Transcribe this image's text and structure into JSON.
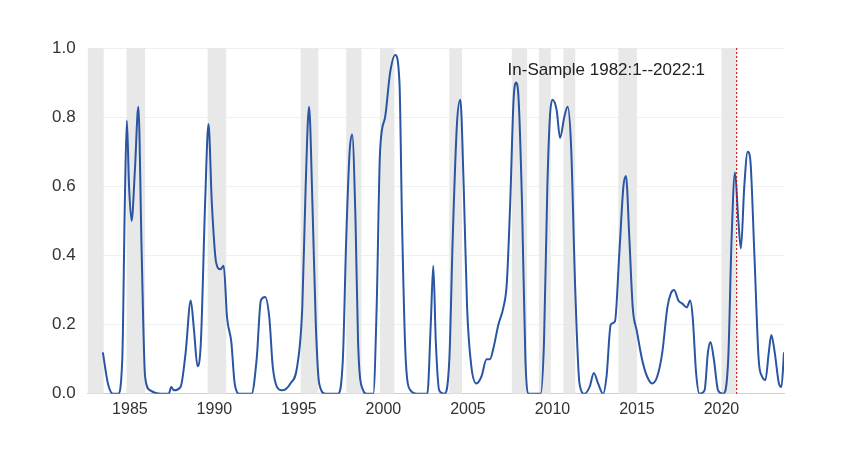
{
  "chart_data": {
    "type": "line",
    "color": "#2a55a3",
    "grid": true,
    "annotation": "In-Sample 1982:1--2022:1",
    "vline": 2020.9,
    "xlim": [
      1982.5,
      2023.7
    ],
    "xticks": [
      1985,
      1990,
      1995,
      2000,
      2005,
      2010,
      2015,
      2020
    ],
    "ylim": [
      0,
      1
    ],
    "yticks": [
      {
        "value": 0,
        "label": "0.0"
      },
      0.2,
      0.4,
      0.6,
      0.8,
      {
        "value": 1,
        "label": "1.0"
      }
    ],
    "shaded_periods": [
      [
        1982.5,
        1983.45
      ],
      [
        1984.8,
        1985.9
      ],
      [
        1989.6,
        1990.7
      ],
      [
        1995.1,
        1996.15
      ],
      [
        1997.8,
        1998.7
      ],
      [
        1999.8,
        2000.65
      ],
      [
        2003.9,
        2004.65
      ],
      [
        2007.6,
        2008.5
      ],
      [
        2009.2,
        2009.9
      ],
      [
        2010.65,
        2011.35
      ],
      [
        2013.9,
        2015.0
      ],
      [
        2020.0,
        2020.9
      ]
    ],
    "x": [
      1983.4,
      1983.7,
      1984.0,
      1984.3,
      1984.55,
      1984.7,
      1984.82,
      1984.95,
      1985.1,
      1985.3,
      1985.5,
      1985.7,
      1985.9,
      1986.2,
      1986.8,
      1987.3,
      1987.45,
      1987.6,
      1988.0,
      1988.3,
      1988.6,
      1988.8,
      1989.0,
      1989.2,
      1989.45,
      1989.65,
      1989.85,
      1990.1,
      1990.35,
      1990.55,
      1990.75,
      1991.0,
      1991.2,
      1991.5,
      1992.2,
      1992.5,
      1992.75,
      1993.0,
      1993.25,
      1993.45,
      1993.7,
      1994.0,
      1994.5,
      1994.9,
      1995.2,
      1995.4,
      1995.6,
      1995.8,
      1996.0,
      1996.2,
      1996.6,
      1997.3,
      1997.6,
      1997.8,
      1998.0,
      1998.15,
      1998.35,
      1998.5,
      1998.8,
      1999.0,
      1999.4,
      1999.6,
      1999.8,
      2000.1,
      2000.4,
      2000.7,
      2000.95,
      2001.1,
      2001.3,
      2001.6,
      2002.0,
      2002.6,
      2002.8,
      2002.95,
      2003.1,
      2003.3,
      2003.6,
      2003.9,
      2004.1,
      2004.35,
      2004.55,
      2004.75,
      2004.95,
      2005.2,
      2005.5,
      2005.8,
      2006.1,
      2006.3,
      2006.5,
      2006.8,
      2007.1,
      2007.3,
      2007.5,
      2007.7,
      2007.85,
      2008.0,
      2008.2,
      2008.4,
      2008.6,
      2009.3,
      2009.5,
      2009.7,
      2009.85,
      2010.0,
      2010.25,
      2010.45,
      2010.7,
      2010.9,
      2011.1,
      2011.35,
      2011.6,
      2011.9,
      2012.2,
      2012.45,
      2012.7,
      2013.0,
      2013.2,
      2013.45,
      2013.7,
      2013.95,
      2014.2,
      2014.35,
      2014.55,
      2014.75,
      2015.0,
      2015.3,
      2015.6,
      2015.9,
      2016.2,
      2016.5,
      2016.8,
      2017.0,
      2017.2,
      2017.45,
      2017.7,
      2017.95,
      2018.15,
      2018.3,
      2018.5,
      2018.7,
      2019.0,
      2019.2,
      2019.35,
      2019.55,
      2019.8,
      2020.1,
      2020.4,
      2020.6,
      2020.8,
      2021.0,
      2021.15,
      2021.35,
      2021.55,
      2021.7,
      2021.95,
      2022.2,
      2022.4,
      2022.6,
      2022.8,
      2022.95,
      2023.15,
      2023.4,
      2023.55,
      2023.7
    ],
    "values": [
      0.12,
      0.03,
      0.0,
      0.0,
      0.1,
      0.55,
      0.79,
      0.6,
      0.5,
      0.65,
      0.83,
      0.4,
      0.05,
      0.01,
      0.0,
      0.0,
      0.02,
      0.01,
      0.02,
      0.12,
      0.27,
      0.18,
      0.08,
      0.15,
      0.55,
      0.78,
      0.55,
      0.38,
      0.36,
      0.37,
      0.22,
      0.15,
      0.03,
      0.0,
      0.0,
      0.1,
      0.27,
      0.28,
      0.22,
      0.08,
      0.02,
      0.01,
      0.03,
      0.08,
      0.25,
      0.6,
      0.83,
      0.55,
      0.2,
      0.03,
      0.0,
      0.0,
      0.1,
      0.45,
      0.7,
      0.75,
      0.5,
      0.15,
      0.01,
      0.0,
      0.0,
      0.25,
      0.7,
      0.8,
      0.93,
      0.98,
      0.9,
      0.5,
      0.12,
      0.01,
      0.0,
      0.0,
      0.2,
      0.37,
      0.15,
      0.01,
      0.0,
      0.1,
      0.45,
      0.78,
      0.85,
      0.6,
      0.25,
      0.08,
      0.03,
      0.05,
      0.1,
      0.1,
      0.13,
      0.2,
      0.25,
      0.32,
      0.55,
      0.85,
      0.9,
      0.85,
      0.55,
      0.1,
      0.0,
      0.0,
      0.15,
      0.6,
      0.8,
      0.85,
      0.82,
      0.74,
      0.8,
      0.83,
      0.72,
      0.3,
      0.03,
      0.0,
      0.02,
      0.06,
      0.03,
      0.0,
      0.05,
      0.2,
      0.21,
      0.4,
      0.6,
      0.63,
      0.45,
      0.25,
      0.18,
      0.1,
      0.05,
      0.03,
      0.05,
      0.12,
      0.25,
      0.29,
      0.3,
      0.27,
      0.26,
      0.25,
      0.27,
      0.22,
      0.06,
      0.0,
      0.01,
      0.12,
      0.15,
      0.1,
      0.01,
      0.0,
      0.1,
      0.45,
      0.64,
      0.5,
      0.42,
      0.6,
      0.7,
      0.68,
      0.4,
      0.1,
      0.05,
      0.04,
      0.12,
      0.17,
      0.12,
      0.03,
      0.02,
      0.12
    ]
  }
}
